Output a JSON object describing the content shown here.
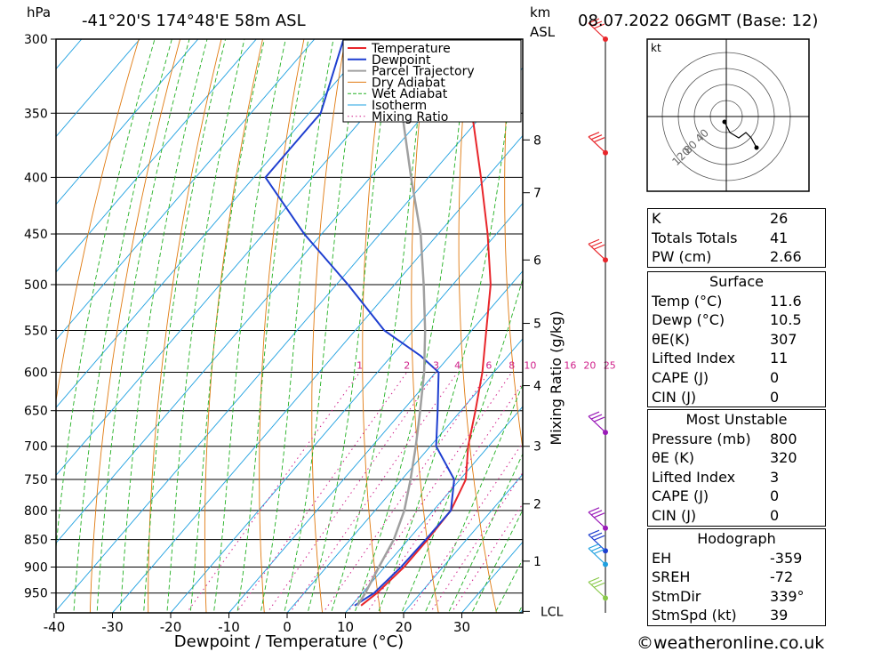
{
  "header": {
    "hpa_label": "hPa",
    "location": "-41°20'S  174°48'E  58m  ASL",
    "km_label": "km",
    "asl_label": "ASL",
    "datetime": "08.07.2022  06GMT  (Base: 12)"
  },
  "axes": {
    "xlabel": "Dewpoint / Temperature (°C)",
    "mixing_label": "Mixing Ratio (g/kg)",
    "x_ticks": [
      "-40",
      "-30",
      "-20",
      "-10",
      "0",
      "10",
      "20",
      "30"
    ],
    "p_ticks": [
      "300",
      "350",
      "400",
      "450",
      "500",
      "550",
      "600",
      "650",
      "700",
      "750",
      "800",
      "850",
      "900",
      "950"
    ],
    "km_ticks": [
      "8",
      "7",
      "6",
      "5",
      "4",
      "3",
      "2",
      "1"
    ],
    "lcl_label": "LCL",
    "mixing_ratio_labels": [
      "1",
      "2",
      "3",
      "4",
      "6",
      "8",
      "10",
      "16",
      "20",
      "25"
    ]
  },
  "legend": {
    "items": [
      "Temperature",
      "Dewpoint",
      "Parcel Trajectory",
      "Dry Adiabat",
      "Wet Adiabat",
      "Isotherm",
      "Mixing Ratio"
    ],
    "colors": [
      "#e8262b",
      "#1f3fd0",
      "#a0a0a0",
      "#e07a10",
      "#22b022",
      "#1ea0e0",
      "#d0208a"
    ]
  },
  "hodograph": {
    "unit": "kt",
    "ring_labels": [
      "40",
      "80",
      "120"
    ]
  },
  "indices": {
    "rows": [
      {
        "label": "K",
        "value": "26"
      },
      {
        "label": "Totals Totals",
        "value": "41"
      },
      {
        "label": "PW (cm)",
        "value": "2.66"
      }
    ],
    "surface": {
      "title": "Surface",
      "rows": [
        {
          "label": "Temp (°C)",
          "value": "11.6"
        },
        {
          "label": "Dewp (°C)",
          "value": "10.5"
        },
        {
          "label": "θE(K)",
          "value": "307"
        },
        {
          "label": "Lifted Index",
          "value": "11"
        },
        {
          "label": "CAPE (J)",
          "value": "0"
        },
        {
          "label": "CIN (J)",
          "value": "0"
        }
      ]
    },
    "most_unstable": {
      "title": "Most Unstable",
      "rows": [
        {
          "label": "Pressure (mb)",
          "value": "800"
        },
        {
          "label": "θE (K)",
          "value": "320"
        },
        {
          "label": "Lifted Index",
          "value": "3"
        },
        {
          "label": "CAPE (J)",
          "value": "0"
        },
        {
          "label": "CIN (J)",
          "value": "0"
        }
      ]
    },
    "hodograph_box": {
      "title": "Hodograph",
      "rows": [
        {
          "label": "EH",
          "value": "-359"
        },
        {
          "label": "SREH",
          "value": "-72"
        },
        {
          "label": "StmDir",
          "value": "339°"
        },
        {
          "label": "StmSpd (kt)",
          "value": "39"
        }
      ]
    }
  },
  "footer": {
    "credit": "©weatheronline.co.uk"
  },
  "chart_data": {
    "type": "line",
    "xlim": [
      -40,
      40
    ],
    "ylim": [
      990,
      300
    ],
    "log_pressure_axis": true,
    "series": [
      {
        "name": "Temperature",
        "pressure": [
          975,
          950,
          900,
          850,
          800,
          750,
          700,
          650,
          600,
          550,
          500,
          450,
          400,
          350,
          300
        ],
        "values": [
          11.6,
          12.5,
          13.3,
          13.3,
          13.0,
          11.0,
          6.5,
          2.5,
          -2.0,
          -7.5,
          -13.5,
          -21.5,
          -31.0,
          -42.0,
          -53.0
        ]
      },
      {
        "name": "Dewpoint",
        "pressure": [
          975,
          950,
          900,
          850,
          800,
          750,
          700,
          650,
          600,
          580,
          550,
          500,
          450,
          400,
          350,
          300
        ],
        "values": [
          10.5,
          12.0,
          12.8,
          13.0,
          13.0,
          9.0,
          1.0,
          -4.0,
          -9.5,
          -15.0,
          -25.0,
          -38.0,
          -53.0,
          -68.0,
          -68.0,
          -75.0
        ]
      },
      {
        "name": "Parcel Trajectory",
        "pressure": [
          975,
          950,
          900,
          850,
          800,
          750,
          700,
          650,
          600,
          550,
          500,
          450,
          400,
          350,
          300
        ],
        "values": [
          11.0,
          10.5,
          9.0,
          7.5,
          5.0,
          1.5,
          -2.5,
          -7.0,
          -12.0,
          -18.0,
          -25.0,
          -33.0,
          -43.0,
          -54.0,
          -66.0
        ]
      }
    ],
    "km_levels": [
      {
        "label": "8",
        "pressure": 370
      },
      {
        "label": "7",
        "pressure": 413
      },
      {
        "label": "6",
        "pressure": 475
      },
      {
        "label": "5",
        "pressure": 542
      },
      {
        "label": "4",
        "pressure": 617
      },
      {
        "label": "3",
        "pressure": 700
      },
      {
        "label": "2",
        "pressure": 789
      },
      {
        "label": "1",
        "pressure": 889
      },
      {
        "label": "LCL",
        "pressure": 987
      }
    ],
    "mixing_ratios": [
      1,
      2,
      3,
      4,
      6,
      8,
      10,
      16,
      20,
      25
    ],
    "wind_barbs": [
      {
        "pressure": 300,
        "color": "#e8262b"
      },
      {
        "pressure": 380,
        "color": "#e8262b"
      },
      {
        "pressure": 475,
        "color": "#e8262b"
      },
      {
        "pressure": 680,
        "color": "#9a1bb8"
      },
      {
        "pressure": 830,
        "color": "#9a1bb8"
      },
      {
        "pressure": 870,
        "color": "#1f3fd0"
      },
      {
        "pressure": 895,
        "color": "#1ea0e0"
      },
      {
        "pressure": 960,
        "color": "#88c848"
      }
    ]
  }
}
